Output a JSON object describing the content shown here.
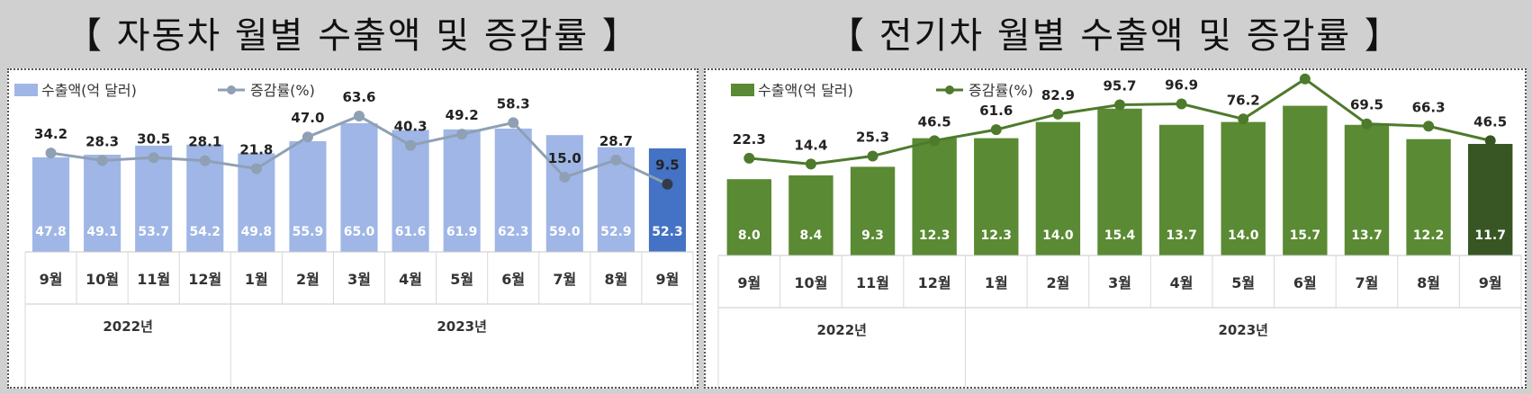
{
  "page": {
    "left_title": "【 자동차 월별 수출액 및 증감률 】",
    "right_title": "【 전기차 월별 수출액 및 증감률 】"
  },
  "chart_data": [
    {
      "type": "bar",
      "title": "【 자동차 월별 수출액 및 증감률 】",
      "categories": [
        "9월",
        "10월",
        "11월",
        "12월",
        "1월",
        "2월",
        "3월",
        "4월",
        "5월",
        "6월",
        "7월",
        "8월",
        "9월"
      ],
      "year_groups": [
        {
          "label": "2022년",
          "count": 4
        },
        {
          "label": "2023년",
          "count": 9
        }
      ],
      "series": [
        {
          "name": "수출액(억 달러)",
          "type": "bar",
          "values": [
            47.8,
            49.1,
            53.7,
            54.2,
            49.8,
            55.9,
            65.0,
            61.6,
            61.9,
            62.3,
            59.0,
            52.9,
            52.3
          ]
        },
        {
          "name": "증감률(%)",
          "type": "line",
          "values": [
            34.2,
            28.3,
            30.5,
            28.1,
            21.8,
            47.0,
            63.6,
            40.3,
            49.2,
            58.3,
            15.0,
            28.7,
            9.5
          ]
        }
      ],
      "legend_position": "top-left",
      "colors": {
        "bar": "#9fb6e6",
        "bar_last": "#4472c4",
        "line": "#8fa0b4",
        "marker_last": "#333b4a"
      }
    },
    {
      "type": "bar",
      "title": "【 전기차 월별 수출액 및 증감률 】",
      "categories": [
        "9월",
        "10월",
        "11월",
        "12월",
        "1월",
        "2월",
        "3월",
        "4월",
        "5월",
        "6월",
        "7월",
        "8월",
        "9월"
      ],
      "year_groups": [
        {
          "label": "2022년",
          "count": 4
        },
        {
          "label": "2023년",
          "count": 9
        }
      ],
      "series": [
        {
          "name": "수출액(억 달러)",
          "type": "bar",
          "values": [
            8.0,
            8.4,
            9.3,
            12.3,
            12.3,
            14.0,
            15.4,
            13.7,
            14.0,
            15.7,
            13.7,
            12.2,
            11.7
          ]
        },
        {
          "name": "증감률(%)",
          "type": "line",
          "values": [
            22.3,
            14.4,
            25.3,
            46.5,
            61.6,
            82.9,
            95.7,
            96.9,
            76.2,
            131.1,
            69.5,
            66.3,
            46.5
          ]
        }
      ],
      "legend_position": "top-left",
      "colors": {
        "bar": "#5a8a33",
        "bar_last": "#375623",
        "line": "#4e7a2c",
        "marker_last": "#375623"
      }
    }
  ]
}
